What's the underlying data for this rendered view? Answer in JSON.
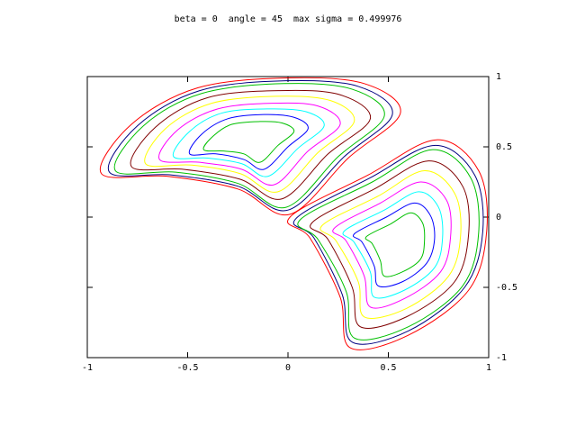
{
  "chart_data": {
    "type": "contour",
    "title": "beta = 0  angle = 45  max sigma = 0.499976",
    "xlim": [
      -1,
      1
    ],
    "ylim": [
      -1,
      1
    ],
    "xticks": [
      -1,
      -0.5,
      0,
      0.5,
      1
    ],
    "yticks": [
      -1,
      -0.5,
      0,
      0.5,
      1
    ],
    "series": [
      {
        "color": "#ff0000",
        "x": [
          -0.93,
          -0.78,
          -0.45,
          0,
          0.38,
          0.56,
          0.3,
          0.01,
          -0.25,
          -0.6,
          null,
          0.01,
          0.4,
          0.74,
          0.95,
          0.99,
          0.9,
          0.6,
          0.31,
          0.26,
          0.11
        ],
        "y": [
          0.31,
          0.66,
          0.92,
          0.99,
          0.95,
          0.74,
          0.42,
          0.02,
          0.2,
          0.29,
          null,
          0.0,
          0.3,
          0.55,
          0.33,
          -0.1,
          -0.52,
          -0.84,
          -0.93,
          -0.57,
          -0.15
        ]
      },
      {
        "color": "#000080",
        "x": [
          -0.89,
          -0.75,
          -0.44,
          -0.01,
          0.35,
          0.52,
          0.28,
          0.0,
          -0.25,
          -0.58,
          null,
          0.04,
          0.41,
          0.73,
          0.93,
          0.97,
          0.88,
          0.6,
          0.32,
          0.27,
          0.13
        ],
        "y": [
          0.32,
          0.65,
          0.9,
          0.97,
          0.93,
          0.73,
          0.43,
          0.05,
          0.22,
          0.3,
          null,
          -0.01,
          0.28,
          0.51,
          0.3,
          -0.11,
          -0.5,
          -0.81,
          -0.89,
          -0.55,
          -0.15
        ]
      },
      {
        "color": "#00c000",
        "x": [
          -0.86,
          -0.72,
          -0.43,
          -0.02,
          0.32,
          0.48,
          0.25,
          -0.01,
          -0.25,
          -0.56,
          null,
          0.06,
          0.42,
          0.72,
          0.91,
          0.95,
          0.87,
          0.6,
          0.33,
          0.29,
          0.15
        ],
        "y": [
          0.33,
          0.65,
          0.88,
          0.95,
          0.91,
          0.72,
          0.43,
          0.07,
          0.24,
          0.32,
          null,
          -0.02,
          0.25,
          0.48,
          0.28,
          -0.11,
          -0.49,
          -0.78,
          -0.86,
          -0.53,
          -0.16
        ]
      },
      {
        "color": "#800000",
        "x": [
          -0.78,
          -0.66,
          -0.4,
          -0.04,
          0.26,
          0.41,
          0.2,
          -0.03,
          -0.24,
          -0.52,
          null,
          0.12,
          0.43,
          0.7,
          0.87,
          0.9,
          0.83,
          0.59,
          0.36,
          0.32,
          0.2
        ],
        "y": [
          0.36,
          0.64,
          0.85,
          0.9,
          0.87,
          0.7,
          0.45,
          0.13,
          0.27,
          0.34,
          null,
          -0.04,
          0.2,
          0.4,
          0.22,
          -0.12,
          -0.46,
          -0.71,
          -0.78,
          -0.5,
          -0.16
        ]
      },
      {
        "color": "#ffff00",
        "x": [
          -0.71,
          -0.61,
          -0.38,
          -0.06,
          0.21,
          0.33,
          0.15,
          -0.05,
          -0.24,
          -0.48,
          null,
          0.17,
          0.45,
          0.68,
          0.83,
          0.86,
          0.8,
          0.59,
          0.38,
          0.35,
          0.24
        ],
        "y": [
          0.38,
          0.63,
          0.81,
          0.86,
          0.83,
          0.68,
          0.46,
          0.18,
          0.31,
          0.37,
          null,
          -0.06,
          0.15,
          0.33,
          0.17,
          -0.13,
          -0.42,
          -0.65,
          -0.71,
          -0.46,
          -0.17
        ]
      },
      {
        "color": "#ff00ff",
        "x": [
          -0.64,
          -0.55,
          -0.35,
          -0.08,
          0.15,
          0.26,
          0.1,
          -0.07,
          -0.23,
          -0.44,
          null,
          0.23,
          0.46,
          0.66,
          0.79,
          0.81,
          0.76,
          0.58,
          0.41,
          0.38,
          0.29
        ],
        "y": [
          0.41,
          0.62,
          0.77,
          0.81,
          0.79,
          0.66,
          0.47,
          0.23,
          0.34,
          0.39,
          null,
          -0.08,
          0.1,
          0.25,
          0.12,
          -0.14,
          -0.39,
          -0.58,
          -0.64,
          -0.42,
          -0.17
        ]
      },
      {
        "color": "#00ffff",
        "x": [
          -0.57,
          -0.49,
          -0.33,
          -0.1,
          0.09,
          0.18,
          0.05,
          -0.1,
          -0.23,
          -0.4,
          null,
          0.28,
          0.48,
          0.65,
          0.75,
          0.77,
          0.73,
          0.58,
          0.43,
          0.41,
          0.33
        ],
        "y": [
          0.43,
          0.61,
          0.74,
          0.77,
          0.75,
          0.65,
          0.49,
          0.29,
          0.38,
          0.42,
          null,
          -0.1,
          0.05,
          0.18,
          0.07,
          -0.15,
          -0.36,
          -0.52,
          -0.57,
          -0.39,
          -0.18
        ]
      },
      {
        "color": "#0000ff",
        "x": [
          -0.49,
          -0.43,
          -0.3,
          -0.12,
          0.03,
          0.1,
          0.0,
          -0.12,
          -0.22,
          -0.36,
          null,
          0.33,
          0.49,
          0.63,
          0.71,
          0.73,
          0.69,
          0.57,
          0.45,
          0.43,
          0.37
        ],
        "y": [
          0.45,
          0.59,
          0.7,
          0.73,
          0.71,
          0.63,
          0.5,
          0.34,
          0.41,
          0.45,
          null,
          -0.12,
          0.0,
          0.1,
          0.01,
          -0.16,
          -0.33,
          -0.46,
          -0.49,
          -0.35,
          -0.18
        ]
      },
      {
        "color": "#00c000",
        "x": [
          -0.42,
          -0.37,
          -0.28,
          -0.14,
          -0.03,
          0.03,
          -0.05,
          -0.14,
          -0.22,
          -0.32,
          null,
          0.39,
          0.51,
          0.61,
          0.67,
          0.68,
          0.66,
          0.57,
          0.48,
          0.46,
          0.42
        ],
        "y": [
          0.48,
          0.58,
          0.66,
          0.68,
          0.67,
          0.61,
          0.51,
          0.39,
          0.45,
          0.47,
          null,
          -0.14,
          -0.05,
          0.03,
          -0.04,
          -0.17,
          -0.3,
          -0.39,
          -0.42,
          -0.31,
          -0.19
        ]
      }
    ]
  }
}
